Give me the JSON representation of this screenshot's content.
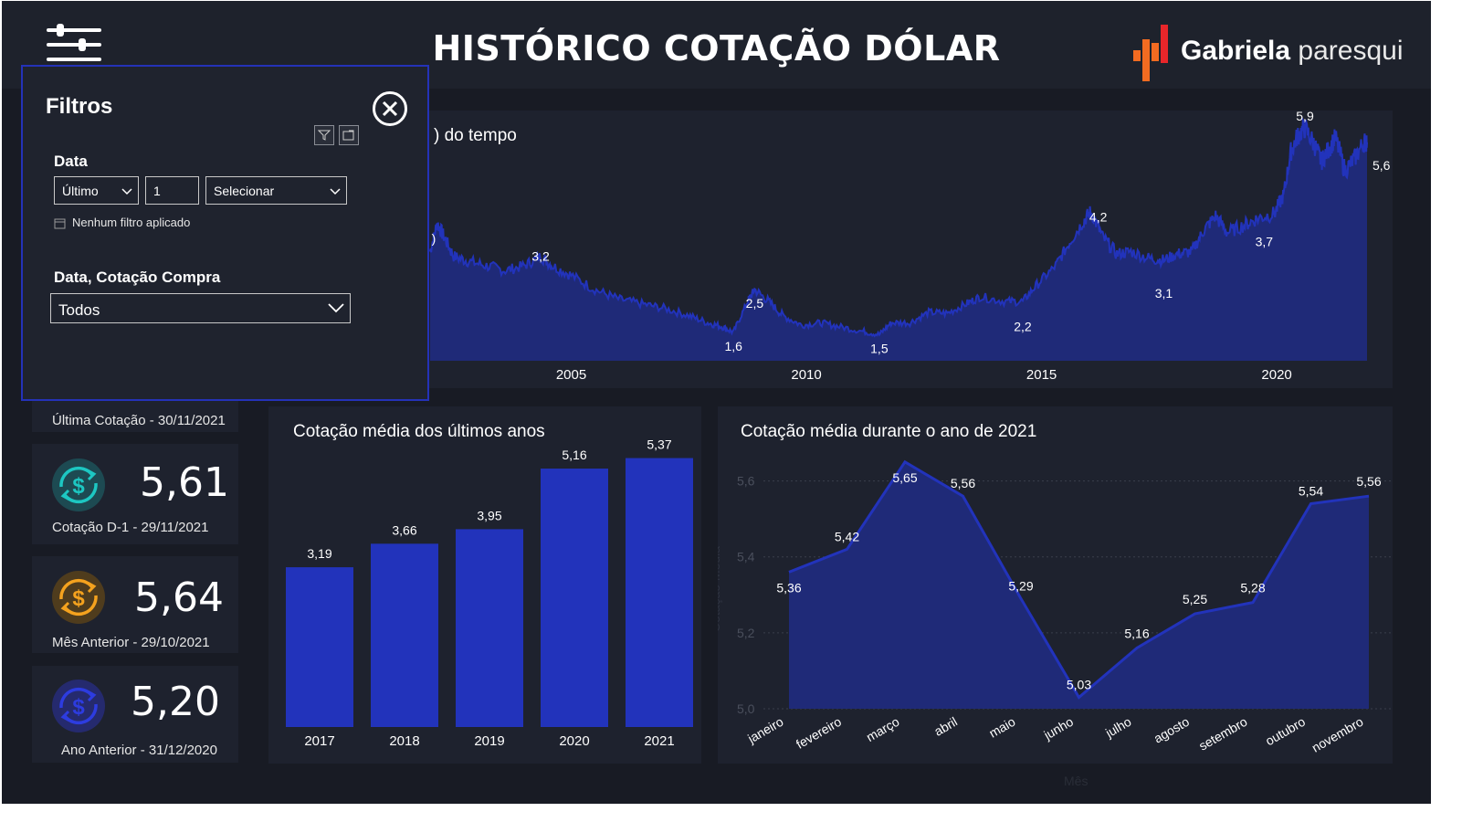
{
  "header": {
    "title": "HISTÓRICO COTAÇÃO DÓLAR",
    "logo_bold": "Gabriela",
    "logo_light": "paresqui"
  },
  "colors": {
    "background": "#181b24",
    "panel": "#1e222e",
    "accent_blue": "#2233bb",
    "area_fill": "#1f2a78",
    "kpi_teal": "#1dc7c2",
    "kpi_orange": "#f4a21e",
    "kpi_blue": "#2d3ce0",
    "logo_orange": "#f26b21",
    "logo_red": "#e8262a"
  },
  "filters": {
    "title": "Filtros",
    "date_label": "Data",
    "mode": "Último",
    "count": "1",
    "unit_placeholder": "Selecionar",
    "status": "Nenhum filtro aplicado",
    "date_buy_label": "Data, Cotação Compra",
    "date_buy_value": "Todos"
  },
  "kpis": {
    "last_quote": "Última Cotação - 30/11/2021",
    "items": [
      {
        "value": "5,61",
        "caption": "Cotação D-1  - 29/11/2021",
        "icon": "dollar-refresh-icon",
        "color": "#1dc7c2"
      },
      {
        "value": "5,64",
        "caption": "Mês Anterior - 29/10/2021",
        "icon": "dollar-refresh-icon",
        "color": "#f4a21e"
      },
      {
        "value": "5,20",
        "caption": "Ano Anterior - 31/12/2020",
        "icon": "dollar-refresh-icon",
        "color": "#2d3ce0"
      }
    ]
  },
  "chart_data": [
    {
      "type": "area",
      "title": ") do tempo",
      "x_ticks": [
        "2005",
        "2010",
        "2015",
        "2020"
      ],
      "x_range": [
        2002.0,
        2021.92
      ],
      "y_range": [
        1.0,
        6.0
      ],
      "points": [
        [
          2002.0,
          3.3
        ],
        [
          2002.15,
          3.9
        ],
        [
          2002.3,
          3.6
        ],
        [
          2002.5,
          3.2
        ],
        [
          2002.8,
          3.1
        ],
        [
          2003.2,
          3.0
        ],
        [
          2003.6,
          2.9
        ],
        [
          2004.0,
          3.0
        ],
        [
          2004.35,
          3.2
        ],
        [
          2004.6,
          3.0
        ],
        [
          2005.0,
          2.8
        ],
        [
          2005.5,
          2.5
        ],
        [
          2006.0,
          2.3
        ],
        [
          2006.5,
          2.2
        ],
        [
          2007.0,
          2.1
        ],
        [
          2007.5,
          1.95
        ],
        [
          2007.9,
          1.8
        ],
        [
          2008.2,
          1.72
        ],
        [
          2008.45,
          1.6
        ],
        [
          2008.75,
          2.25
        ],
        [
          2008.9,
          2.5
        ],
        [
          2009.2,
          2.25
        ],
        [
          2009.5,
          1.95
        ],
        [
          2009.9,
          1.75
        ],
        [
          2010.3,
          1.8
        ],
        [
          2010.7,
          1.72
        ],
        [
          2011.2,
          1.62
        ],
        [
          2011.55,
          1.55
        ],
        [
          2011.8,
          1.8
        ],
        [
          2012.2,
          1.8
        ],
        [
          2012.6,
          2.02
        ],
        [
          2013.0,
          2.0
        ],
        [
          2013.4,
          2.2
        ],
        [
          2013.7,
          2.35
        ],
        [
          2014.2,
          2.25
        ],
        [
          2014.6,
          2.25
        ],
        [
          2014.9,
          2.6
        ],
        [
          2015.3,
          3.0
        ],
        [
          2015.6,
          3.5
        ],
        [
          2015.9,
          3.95
        ],
        [
          2016.05,
          4.15
        ],
        [
          2016.3,
          3.6
        ],
        [
          2016.6,
          3.25
        ],
        [
          2016.9,
          3.3
        ],
        [
          2017.3,
          3.15
        ],
        [
          2017.6,
          3.12
        ],
        [
          2017.9,
          3.25
        ],
        [
          2018.2,
          3.3
        ],
        [
          2018.45,
          3.75
        ],
        [
          2018.7,
          4.05
        ],
        [
          2018.95,
          3.7
        ],
        [
          2019.3,
          3.85
        ],
        [
          2019.6,
          4.0
        ],
        [
          2019.95,
          4.1
        ],
        [
          2020.15,
          4.5
        ],
        [
          2020.3,
          5.4
        ],
        [
          2020.45,
          5.75
        ],
        [
          2020.6,
          5.9
        ],
        [
          2020.8,
          5.55
        ],
        [
          2020.95,
          5.2
        ],
        [
          2021.1,
          5.45
        ],
        [
          2021.25,
          5.7
        ],
        [
          2021.45,
          5.0
        ],
        [
          2021.65,
          5.25
        ],
        [
          2021.85,
          5.6
        ],
        [
          2021.92,
          5.6
        ]
      ],
      "annotations": [
        {
          "x": 2002.0,
          "y": 3.9,
          "label": ")"
        },
        {
          "x": 2004.35,
          "y": 3.2,
          "label": "3,2"
        },
        {
          "x": 2008.45,
          "y": 1.6,
          "label": "1,6"
        },
        {
          "x": 2008.9,
          "y": 2.5,
          "label": "2,5"
        },
        {
          "x": 2011.55,
          "y": 1.55,
          "label": "1,5"
        },
        {
          "x": 2014.6,
          "y": 2.2,
          "label": "2,2"
        },
        {
          "x": 2016.05,
          "y": 4.2,
          "label": "4,2"
        },
        {
          "x": 2017.6,
          "y": 3.1,
          "label": "3,1"
        },
        {
          "x": 2019.5,
          "y": 3.7,
          "label": "3,7"
        },
        {
          "x": 2020.6,
          "y": 5.9,
          "label": "5,9"
        },
        {
          "x": 2021.92,
          "y": 5.6,
          "label": "5,6"
        }
      ]
    },
    {
      "type": "bar",
      "title": "Cotação média dos últimos anos",
      "categories": [
        "2017",
        "2018",
        "2019",
        "2020",
        "2021"
      ],
      "values": [
        3.19,
        3.66,
        3.95,
        5.16,
        5.37
      ],
      "labels": [
        "3,19",
        "3,66",
        "3,95",
        "5,16",
        "5,37"
      ],
      "ylim": [
        0,
        6.0
      ]
    },
    {
      "type": "area",
      "title": "Cotação média durante o ano de 2021",
      "xlabel": "Mês",
      "ylabel": "Cotação Média",
      "categories": [
        "janeiro",
        "fevereiro",
        "março",
        "abril",
        "maio",
        "junho",
        "julho",
        "agosto",
        "setembro",
        "outubro",
        "novembro"
      ],
      "values": [
        5.36,
        5.42,
        5.65,
        5.56,
        5.29,
        5.03,
        5.16,
        5.25,
        5.28,
        5.54,
        5.56
      ],
      "labels": [
        "5,36",
        "5,42",
        "5,65",
        "5,56",
        "5,29",
        "5,03",
        "5,16",
        "5,25",
        "5,28",
        "5,54",
        "5,56"
      ],
      "y_ticks": [
        "5,0",
        "5,2",
        "5,4",
        "5,6"
      ],
      "y_tick_values": [
        5.0,
        5.2,
        5.4,
        5.6
      ],
      "ylim": [
        5.0,
        5.7
      ],
      "grid": true
    }
  ]
}
